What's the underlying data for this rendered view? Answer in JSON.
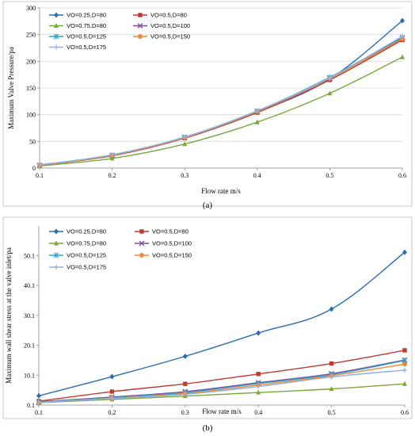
{
  "chart_data": [
    {
      "type": "line",
      "caption": "(a)",
      "xlabel": "Flow rate m/s",
      "ylabel": "Maximum Valve Pressure/pa",
      "xlim": [
        0.1,
        0.6
      ],
      "ylim": [
        0,
        300
      ],
      "xticks": [
        "0.1",
        "0.2",
        "0.3",
        "0.4",
        "0.5",
        "0.6"
      ],
      "yticks": [
        "0",
        "50",
        "100",
        "150",
        "200",
        "250",
        "300"
      ],
      "grid": "horizontal",
      "legend_position": "top-left",
      "x": [
        0.1,
        0.2,
        0.3,
        0.4,
        0.5,
        0.6
      ],
      "series": [
        {
          "name": "VO=0.25,D=80",
          "color": "#2a6db3",
          "marker": "diamond",
          "values": [
            6,
            24,
            57,
            105,
            167,
            276
          ]
        },
        {
          "name": "VO=0.5,D=80",
          "color": "#c0392b",
          "marker": "square",
          "values": [
            5,
            23,
            56,
            104,
            165,
            240
          ]
        },
        {
          "name": "VO=0.75,D=80",
          "color": "#77a83a",
          "marker": "triangle",
          "values": [
            4,
            18,
            45,
            86,
            140,
            208
          ]
        },
        {
          "name": "VO=0.5,D=100",
          "color": "#7b4f9e",
          "marker": "x",
          "values": [
            5,
            24,
            57,
            106,
            168,
            243
          ]
        },
        {
          "name": "VO=0.5,D=125",
          "color": "#2aa3cf",
          "marker": "star",
          "values": [
            5,
            24,
            58,
            107,
            170,
            245
          ]
        },
        {
          "name": "VO=0.5,D=150",
          "color": "#f0883a",
          "marker": "circle",
          "values": [
            5,
            24,
            57,
            106,
            168,
            242
          ]
        },
        {
          "name": "VO=0.5,D=175",
          "color": "#8fb0e0",
          "marker": "plus",
          "values": [
            6,
            25,
            58,
            107,
            169,
            247
          ]
        }
      ]
    },
    {
      "type": "line",
      "caption": "(b)",
      "xlabel": "Flow rate m/s",
      "ylabel": "Maximum wall shear stress at the valve inlet/pa",
      "xlim": [
        0.1,
        0.6
      ],
      "ylim": [
        0.1,
        60
      ],
      "xticks": [
        "0.1",
        "0.2",
        "0.3",
        "0.4",
        "0.5",
        "0.6"
      ],
      "yticks": [
        "0.1",
        "10.1",
        "20.1",
        "30.1",
        "40.1",
        "50.1"
      ],
      "grid": "none",
      "legend_position": "top-left",
      "x": [
        0.1,
        0.2,
        0.3,
        0.4,
        0.5,
        0.6
      ],
      "series": [
        {
          "name": "VO=0.25,D=80",
          "color": "#2a6db3",
          "marker": "diamond",
          "values": [
            3.2,
            9.6,
            16.4,
            24.2,
            32.2,
            51.2
          ]
        },
        {
          "name": "VO=0.5,D=80",
          "color": "#c0392b",
          "marker": "square",
          "values": [
            1.4,
            4.6,
            7.2,
            10.5,
            14.0,
            18.4
          ]
        },
        {
          "name": "VO=0.75,D=80",
          "color": "#77a83a",
          "marker": "triangle",
          "values": [
            0.9,
            2.0,
            3.1,
            4.3,
            5.5,
            7.2
          ]
        },
        {
          "name": "VO=0.5,D=100",
          "color": "#7b4f9e",
          "marker": "x",
          "values": [
            1.2,
            2.8,
            4.6,
            7.6,
            10.6,
            15.2
          ]
        },
        {
          "name": "VO=0.5,D=125",
          "color": "#2aa3cf",
          "marker": "star",
          "values": [
            1.1,
            2.6,
            4.3,
            7.3,
            10.3,
            15.0
          ]
        },
        {
          "name": "VO=0.5,D=150",
          "color": "#f0883a",
          "marker": "circle",
          "values": [
            1.0,
            2.4,
            4.0,
            6.8,
            9.9,
            13.8
          ]
        },
        {
          "name": "VO=0.5,D=175",
          "color": "#8fb0e0",
          "marker": "plus",
          "values": [
            1.0,
            2.3,
            3.7,
            6.3,
            9.5,
            11.8
          ]
        }
      ]
    }
  ]
}
